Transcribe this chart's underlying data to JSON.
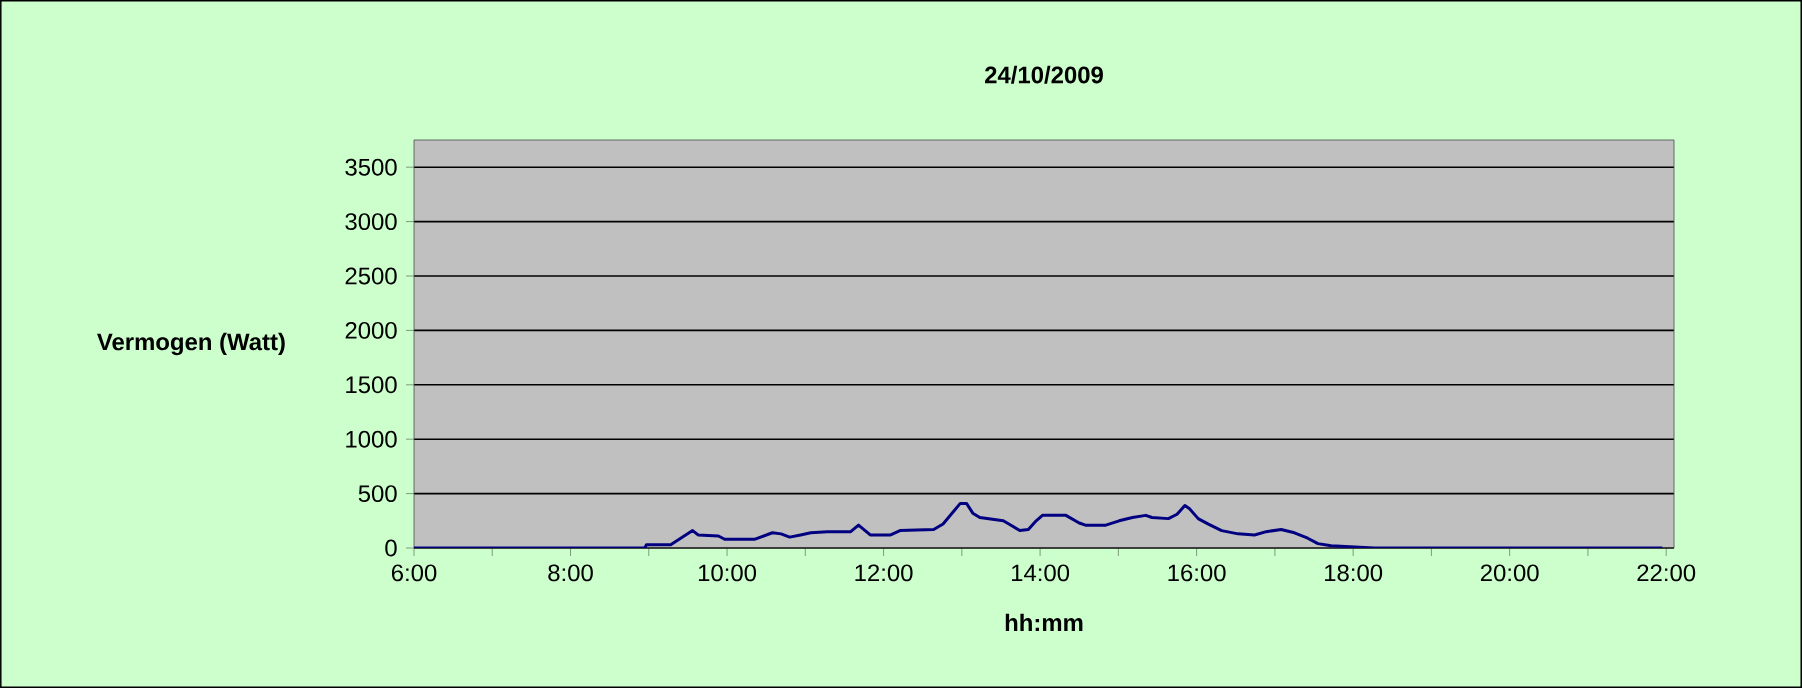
{
  "chart_data": {
    "type": "line",
    "title": "24/10/2009",
    "xlabel": "hh:mm",
    "ylabel": "Vermogen (Watt)",
    "series": [
      {
        "color": "#000080",
        "x": [
          6.0,
          8.95,
          8.97,
          9.28,
          9.56,
          9.63,
          9.89,
          9.97,
          10.35,
          10.58,
          10.69,
          10.8,
          10.94,
          11.07,
          11.28,
          11.58,
          11.68,
          11.83,
          12.09,
          12.21,
          12.64,
          12.76,
          12.98,
          13.06,
          13.14,
          13.23,
          13.53,
          13.65,
          13.74,
          13.85,
          13.95,
          14.03,
          14.33,
          14.5,
          14.58,
          14.84,
          15.01,
          15.18,
          15.35,
          15.43,
          15.64,
          15.75,
          15.85,
          15.91,
          16.02,
          16.15,
          16.32,
          16.53,
          16.74,
          16.89,
          17.08,
          17.25,
          17.42,
          17.55,
          17.72,
          18.27,
          21.95
        ],
        "values": [
          0,
          0,
          30,
          30,
          160,
          120,
          110,
          80,
          80,
          140,
          130,
          100,
          120,
          140,
          150,
          150,
          210,
          120,
          120,
          160,
          170,
          220,
          410,
          410,
          320,
          280,
          250,
          200,
          160,
          170,
          250,
          300,
          300,
          230,
          210,
          210,
          250,
          280,
          300,
          280,
          270,
          310,
          390,
          360,
          270,
          220,
          160,
          130,
          120,
          150,
          170,
          140,
          90,
          40,
          20,
          0,
          0
        ]
      }
    ],
    "xlim": [
      6,
      22.1
    ],
    "xticks": [
      {
        "value": 6,
        "label": "6:00"
      },
      {
        "value": 7,
        "label": null
      },
      {
        "value": 8,
        "label": "8:00"
      },
      {
        "value": 9,
        "label": null
      },
      {
        "value": 10,
        "label": "10:00"
      },
      {
        "value": 11,
        "label": null
      },
      {
        "value": 12,
        "label": "12:00"
      },
      {
        "value": 13,
        "label": null
      },
      {
        "value": 14,
        "label": "14:00"
      },
      {
        "value": 15,
        "label": null
      },
      {
        "value": 16,
        "label": "16:00"
      },
      {
        "value": 17,
        "label": null
      },
      {
        "value": 18,
        "label": "18:00"
      },
      {
        "value": 19,
        "label": null
      },
      {
        "value": 20,
        "label": "20:00"
      },
      {
        "value": 21,
        "label": null
      },
      {
        "value": 22,
        "label": "22:00"
      }
    ],
    "ylim": [
      0,
      3750
    ],
    "yticks": [
      0,
      500,
      1000,
      1500,
      2000,
      2500,
      3000,
      3500
    ],
    "grid": "y"
  }
}
